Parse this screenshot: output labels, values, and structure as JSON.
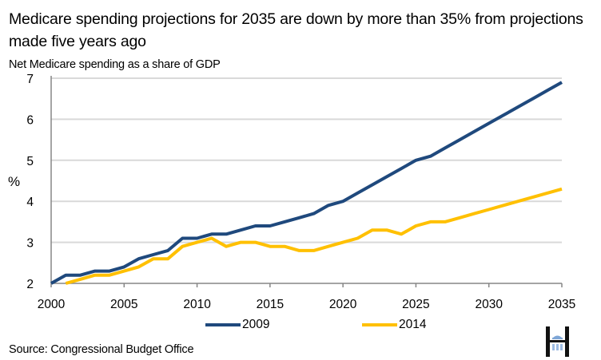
{
  "title": "Medicare spending projections for 2035 are down by more than 35% from projections made five years ago",
  "subtitle": "Net Medicare spending as a share of GDP",
  "y_unit_label": "%",
  "source": "Source: Congressional Budget Office",
  "logo_icon": "h-capitol-logo",
  "colors": {
    "series_2009": "#1f497d",
    "series_2014": "#ffc000",
    "grid": "#d9d9d9",
    "axis": "#868686"
  },
  "chart_data": {
    "type": "line",
    "title": "Medicare spending projections for 2035 are down by more than 35% from projections made five years ago",
    "subtitle": "Net Medicare spending as a share of GDP",
    "xlabel": "",
    "ylabel": "%",
    "xlim": [
      2000,
      2035
    ],
    "ylim": [
      2,
      7
    ],
    "x_ticks": [
      2000,
      2005,
      2010,
      2015,
      2020,
      2025,
      2030,
      2035
    ],
    "y_ticks": [
      2,
      3,
      4,
      5,
      6,
      7
    ],
    "grid": "horizontal",
    "legend_position": "bottom",
    "x": [
      2000,
      2001,
      2002,
      2003,
      2004,
      2005,
      2006,
      2007,
      2008,
      2009,
      2010,
      2011,
      2012,
      2013,
      2014,
      2015,
      2016,
      2017,
      2018,
      2019,
      2020,
      2021,
      2022,
      2023,
      2024,
      2025,
      2026,
      2027,
      2028,
      2029,
      2030,
      2031,
      2032,
      2033,
      2034,
      2035
    ],
    "series": [
      {
        "name": "2009",
        "color": "#1f497d",
        "values": [
          2.0,
          2.2,
          2.2,
          2.3,
          2.3,
          2.4,
          2.6,
          2.7,
          2.8,
          3.1,
          3.1,
          3.2,
          3.2,
          3.3,
          3.4,
          3.4,
          3.5,
          3.6,
          3.7,
          3.9,
          4.0,
          4.2,
          4.4,
          4.6,
          4.8,
          5.0,
          5.1,
          5.3,
          5.5,
          5.7,
          5.9,
          6.1,
          6.3,
          6.5,
          6.7,
          6.9
        ]
      },
      {
        "name": "2014",
        "color": "#ffc000",
        "values": [
          null,
          2.0,
          2.1,
          2.2,
          2.2,
          2.3,
          2.4,
          2.6,
          2.6,
          2.9,
          3.0,
          3.1,
          2.9,
          3.0,
          3.0,
          2.9,
          2.9,
          2.8,
          2.8,
          2.9,
          3.0,
          3.1,
          3.3,
          3.3,
          3.2,
          3.4,
          3.5,
          3.5,
          3.6,
          3.7,
          3.8,
          3.9,
          4.0,
          4.1,
          4.2,
          4.3
        ]
      }
    ]
  }
}
